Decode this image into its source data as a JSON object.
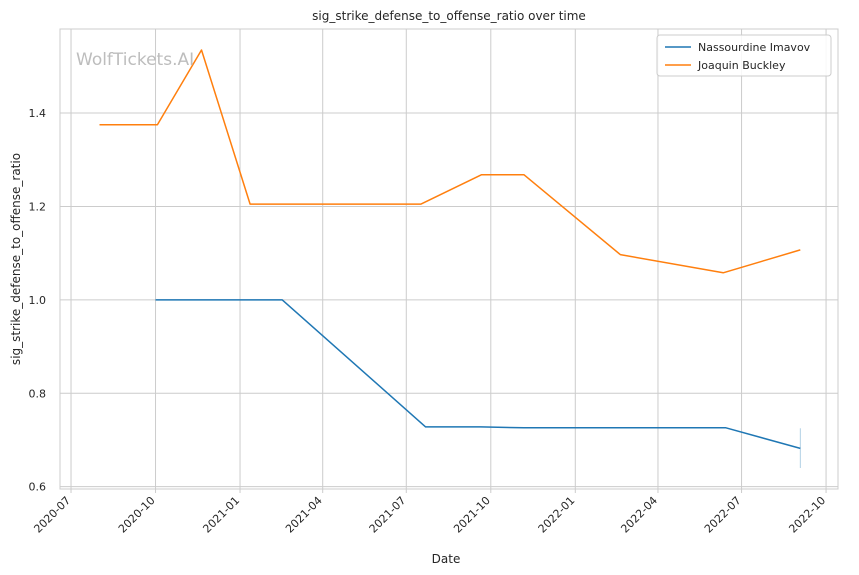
{
  "chart_data": {
    "type": "line",
    "title": "sig_strike_defense_to_offense_ratio over time",
    "xlabel": "Date",
    "ylabel": "sig_strike_defense_to_offense_ratio",
    "watermark": "WolfTickets.AI",
    "xlim": [
      "2020-06-19",
      "2022-10-14"
    ],
    "ylim": [
      0.595,
      1.58
    ],
    "x_ticks": [
      "2020-07",
      "2020-10",
      "2021-01",
      "2021-04",
      "2021-07",
      "2021-10",
      "2022-01",
      "2022-04",
      "2022-07",
      "2022-10"
    ],
    "x_tick_dates": [
      "2020-07-01",
      "2020-10-01",
      "2021-01-01",
      "2021-04-01",
      "2021-07-01",
      "2021-10-01",
      "2022-01-01",
      "2022-04-01",
      "2022-07-01",
      "2022-10-01"
    ],
    "y_ticks": [
      0.6,
      0.8,
      1.0,
      1.2,
      1.4
    ],
    "y_tick_labels": [
      "0.6",
      "0.8",
      "1.0",
      "1.2",
      "1.4"
    ],
    "grid": true,
    "legend_position": "top-right",
    "series": [
      {
        "name": "Nassourdine Imavov",
        "color": "#1f77b4",
        "points": [
          {
            "x": "2020-10-01",
            "y": 1.0
          },
          {
            "x": "2021-02-16",
            "y": 1.0
          },
          {
            "x": "2021-07-22",
            "y": 0.728
          },
          {
            "x": "2021-09-20",
            "y": 0.728
          },
          {
            "x": "2021-11-06",
            "y": 0.726
          },
          {
            "x": "2022-06-14",
            "y": 0.726
          },
          {
            "x": "2022-09-03",
            "y": 0.682
          }
        ],
        "error_bar": {
          "x": "2022-09-03",
          "low": 0.64,
          "high": 0.725
        }
      },
      {
        "name": "Joaquin Buckley",
        "color": "#ff7f0e",
        "points": [
          {
            "x": "2020-08-01",
            "y": 1.375
          },
          {
            "x": "2020-10-03",
            "y": 1.375
          },
          {
            "x": "2020-11-20",
            "y": 1.535
          },
          {
            "x": "2021-01-12",
            "y": 1.205
          },
          {
            "x": "2021-07-17",
            "y": 1.205
          },
          {
            "x": "2021-09-21",
            "y": 1.268
          },
          {
            "x": "2021-11-06",
            "y": 1.268
          },
          {
            "x": "2022-02-19",
            "y": 1.097
          },
          {
            "x": "2022-06-11",
            "y": 1.058
          },
          {
            "x": "2022-09-03",
            "y": 1.107
          }
        ]
      }
    ]
  }
}
